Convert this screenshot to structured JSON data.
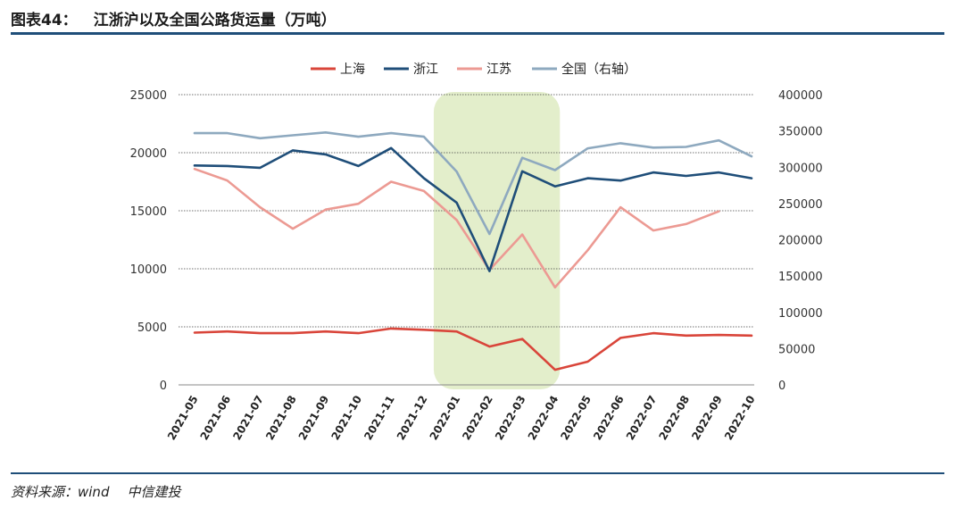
{
  "figure": {
    "number": "图表44：",
    "title": "江浙沪以及全国公路货运量（万吨）",
    "source_label": "资料来源：wind",
    "source_org": "中信建投"
  },
  "chart_data": {
    "type": "line",
    "categories": [
      "2021-05",
      "2021-06",
      "2021-07",
      "2021-08",
      "2021-09",
      "2021-10",
      "2021-11",
      "2021-12",
      "2022-01",
      "2022-02",
      "2022-03",
      "2022-04",
      "2022-05",
      "2022-06",
      "2022-07",
      "2022-08",
      "2022-09",
      "2022-10"
    ],
    "left_axis": {
      "ylim": [
        0,
        25000
      ],
      "ticks": [
        0,
        5000,
        10000,
        15000,
        20000,
        25000
      ]
    },
    "right_axis": {
      "ylim": [
        0,
        400000
      ],
      "ticks": [
        0,
        50000,
        100000,
        150000,
        200000,
        250000,
        300000,
        350000,
        400000
      ]
    },
    "highlight": {
      "from": "2022-01",
      "to": "2022-04",
      "color": "#e3eecb"
    },
    "legend_position": "top-center",
    "grid": "horizontal-dotted",
    "series": [
      {
        "name": "上海",
        "axis": "left",
        "color": "#d9453a",
        "values": [
          4500,
          4600,
          4450,
          4450,
          4600,
          4450,
          4850,
          4750,
          4600,
          3300,
          3950,
          1300,
          2000,
          4050,
          4450,
          4250,
          4300,
          4250
        ]
      },
      {
        "name": "浙江",
        "axis": "left",
        "color": "#1f4e79",
        "values": [
          18900,
          18850,
          18700,
          20200,
          19850,
          18850,
          20400,
          17800,
          15700,
          9800,
          18400,
          17100,
          17800,
          17600,
          18300,
          18000,
          18300,
          17800
        ]
      },
      {
        "name": "江苏",
        "axis": "left",
        "color": "#ec9a93",
        "values": [
          18600,
          17600,
          15300,
          13450,
          15100,
          15600,
          17500,
          16700,
          14200,
          9900,
          12950,
          8400,
          11600,
          15300,
          13300,
          13850,
          14950,
          null
        ]
      },
      {
        "name": "全国（右轴）",
        "axis": "right",
        "color": "#8ea9bf",
        "values": [
          347000,
          347000,
          340000,
          344000,
          348000,
          342000,
          347000,
          342000,
          294000,
          208000,
          313000,
          296000,
          326000,
          333000,
          327000,
          328000,
          337000,
          315000
        ]
      }
    ]
  }
}
